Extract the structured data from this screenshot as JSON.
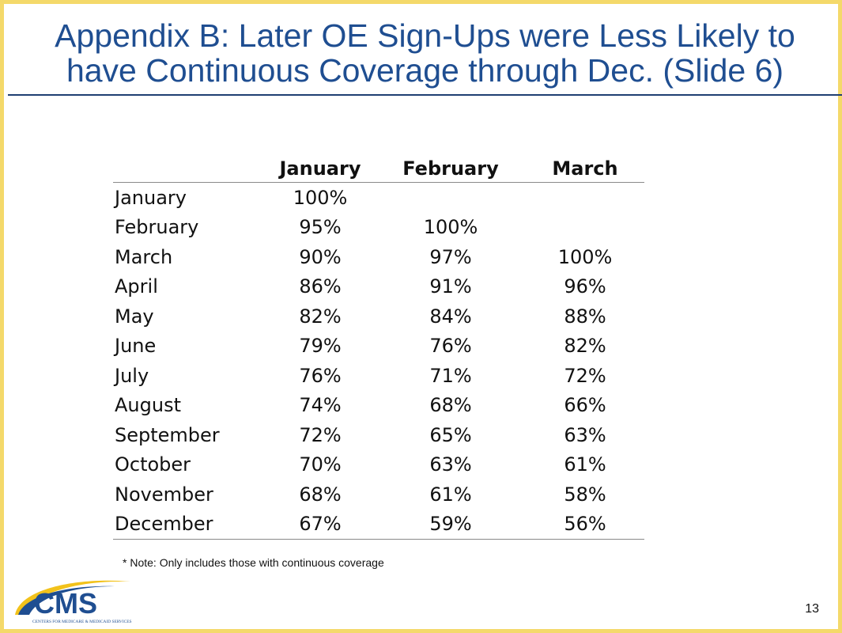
{
  "slide": {
    "title_line1": "Appendix B: Later OE Sign-Ups were Less Likely to",
    "title_line2": "have Continuous Coverage through Dec. (Slide 6)",
    "note": "* Note: Only includes those with continuous coverage",
    "page_number": "13",
    "logo": {
      "wordmark": "CMS",
      "tagline": "CENTERS FOR MEDICARE & MEDICAID SERVICES"
    },
    "colors": {
      "title": "#1f4e91",
      "border": "#f4d96a",
      "logo_blue": "#1f4e91",
      "logo_swoosh": "#f2c21b"
    }
  },
  "table": {
    "columns": [
      "January",
      "February",
      "March"
    ],
    "rows": [
      {
        "label": "January",
        "values": [
          "100%",
          "",
          ""
        ]
      },
      {
        "label": "February",
        "values": [
          "95%",
          "100%",
          ""
        ]
      },
      {
        "label": "March",
        "values": [
          "90%",
          "97%",
          "100%"
        ]
      },
      {
        "label": "April",
        "values": [
          "86%",
          "91%",
          "96%"
        ]
      },
      {
        "label": "May",
        "values": [
          "82%",
          "84%",
          "88%"
        ]
      },
      {
        "label": "June",
        "values": [
          "79%",
          "76%",
          "82%"
        ]
      },
      {
        "label": "July",
        "values": [
          "76%",
          "71%",
          "72%"
        ]
      },
      {
        "label": "August",
        "values": [
          "74%",
          "68%",
          "66%"
        ]
      },
      {
        "label": "September",
        "values": [
          "72%",
          "65%",
          "63%"
        ]
      },
      {
        "label": "October",
        "values": [
          "70%",
          "63%",
          "61%"
        ]
      },
      {
        "label": "November",
        "values": [
          "68%",
          "61%",
          "58%"
        ]
      },
      {
        "label": "December",
        "values": [
          "67%",
          "59%",
          "56%"
        ]
      }
    ]
  }
}
